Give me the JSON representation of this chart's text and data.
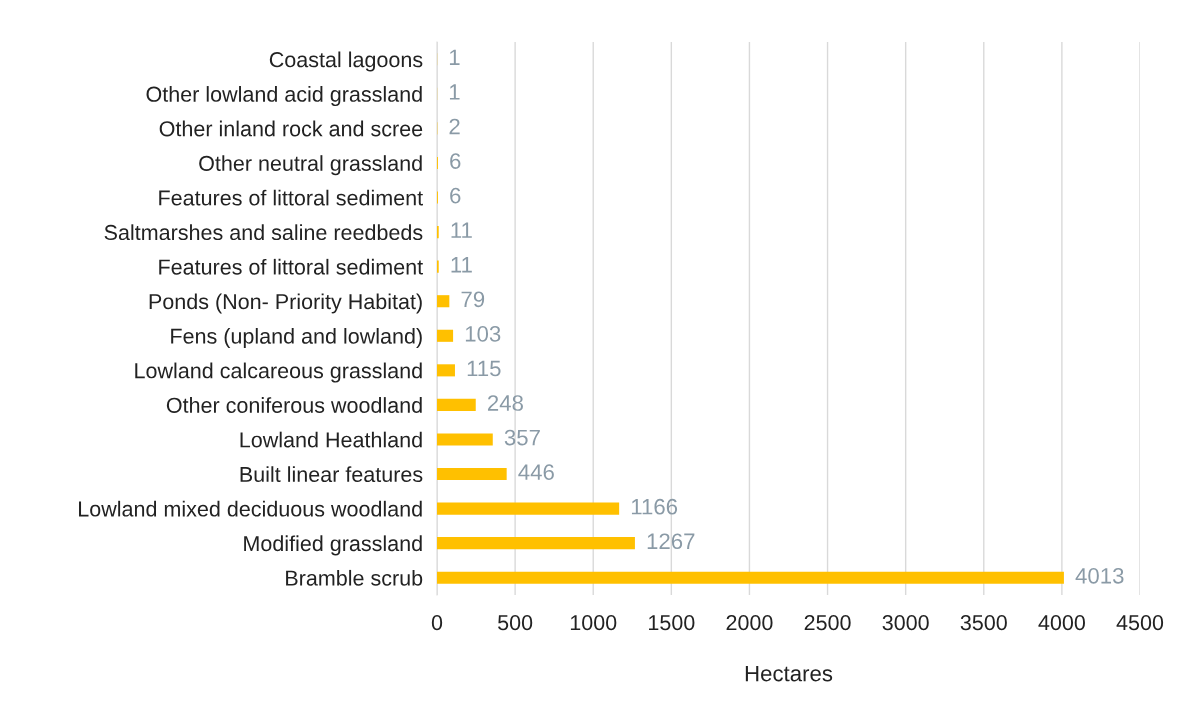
{
  "chart_data": {
    "type": "bar",
    "orientation": "horizontal",
    "xlabel": "Hectares",
    "categories": [
      "Coastal lagoons",
      "Other lowland acid grassland",
      "Other inland rock and scree",
      "Other neutral grassland",
      "Features of littoral sediment",
      "Saltmarshes and saline reedbeds",
      "Features of littoral sediment",
      "Ponds (Non- Priority Habitat)",
      "Fens (upland and lowland)",
      "Lowland calcareous grassland",
      "Other coniferous woodland",
      "Lowland Heathland",
      "Built linear features",
      "Lowland mixed deciduous woodland",
      "Modified grassland",
      "Bramble scrub"
    ],
    "values": [
      1,
      1,
      2,
      6,
      6,
      11,
      11,
      79,
      103,
      115,
      248,
      357,
      446,
      1166,
      1267,
      4013
    ],
    "color": "#ffc000",
    "xlim": [
      0,
      4500
    ],
    "xticks": [
      0,
      500,
      1000,
      1500,
      2000,
      2500,
      3000,
      3500,
      4000,
      4500
    ],
    "grid": "x",
    "data_labels": true,
    "legend": false
  }
}
